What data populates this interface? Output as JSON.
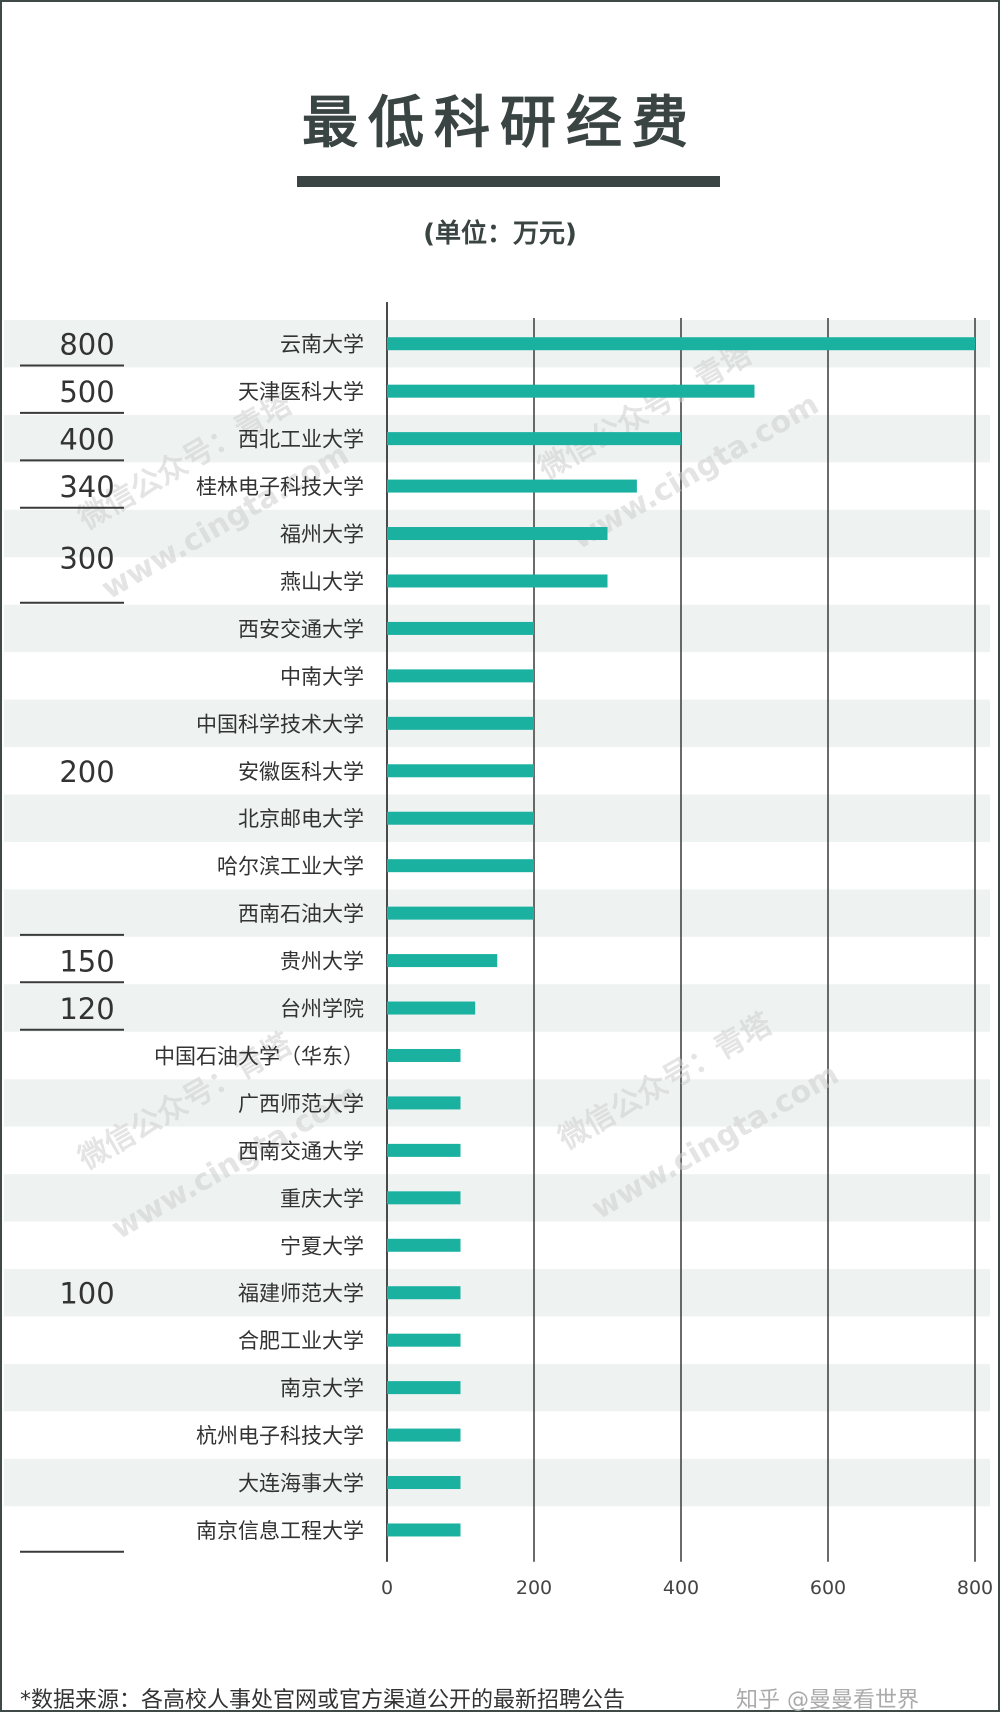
{
  "chart_data": {
    "type": "bar",
    "orientation": "horizontal",
    "title": "最低科研经费",
    "subtitle": "(单位：万元)",
    "categories": [
      "云南大学",
      "天津医科大学",
      "西北工业大学",
      "桂林电子科技大学",
      "福州大学",
      "燕山大学",
      "西安交通大学",
      "中南大学",
      "中国科学技术大学",
      "安徽医科大学",
      "北京邮电大学",
      "哈尔滨工业大学",
      "西南石油大学",
      "贵州大学",
      "台州学院",
      "中国石油大学（华东）",
      "广西师范大学",
      "西南交通大学",
      "重庆大学",
      "宁夏大学",
      "福建师范大学",
      "合肥工业大学",
      "南京大学",
      "杭州电子科技大学",
      "大连海事大学",
      "南京信息工程大学"
    ],
    "values": [
      800,
      500,
      400,
      340,
      300,
      300,
      200,
      200,
      200,
      200,
      200,
      200,
      200,
      150,
      120,
      100,
      100,
      100,
      100,
      100,
      100,
      100,
      100,
      100,
      100,
      100
    ],
    "x_ticks": [
      "0",
      "200",
      "400",
      "600",
      "800"
    ],
    "xlim": [
      0,
      800
    ],
    "grid": "vertical lines at 200, 400, 600, 800",
    "bar_color": "#1ab1a1",
    "stripe_color": "#eef3f2",
    "group_labels": [
      {
        "label": "800",
        "from": 0,
        "to": 0
      },
      {
        "label": "500",
        "from": 1,
        "to": 1
      },
      {
        "label": "400",
        "from": 2,
        "to": 2
      },
      {
        "label": "340",
        "from": 3,
        "to": 3
      },
      {
        "label": "300",
        "from": 4,
        "to": 5
      },
      {
        "label": "200",
        "from": 6,
        "to": 12
      },
      {
        "label": "150",
        "from": 13,
        "to": 13
      },
      {
        "label": "120",
        "from": 14,
        "to": 14
      },
      {
        "label": "100",
        "from": 15,
        "to": 25
      }
    ]
  },
  "watermarks": [
    "微信公众号：青塔",
    "www.cingta.com"
  ],
  "footer": {
    "source": "*数据来源：各高校人事处官网或官方渠道公开的最新招聘公告",
    "credit": "知乎 @曼曼看世界"
  }
}
